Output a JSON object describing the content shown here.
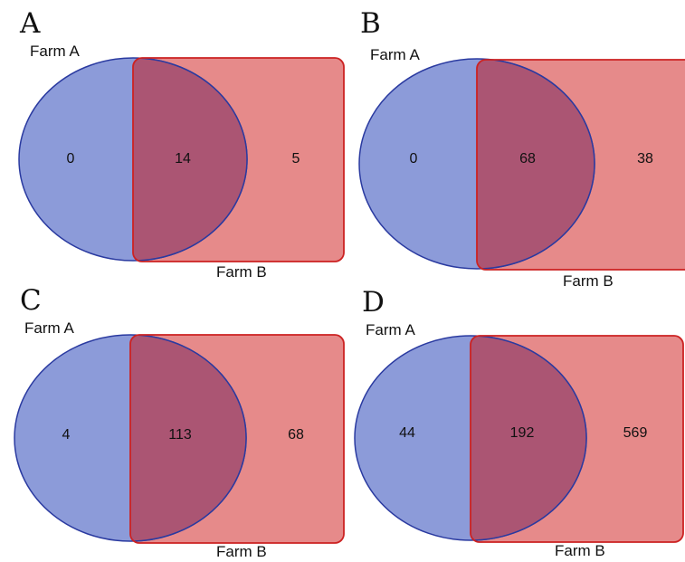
{
  "colors": {
    "circle_fill": "#8c9bd9",
    "circle_stroke": "#2a3aa0",
    "rect_fill": "#e68a8a",
    "rect_stroke": "#cc2222",
    "overlap_fill": "#ab5573"
  },
  "panels": [
    {
      "letter": "A",
      "set_a_label": "Farm A",
      "set_b_label": "Farm B",
      "only_a": "0",
      "both": "14",
      "only_b": "5"
    },
    {
      "letter": "B",
      "set_a_label": "Farm A",
      "set_b_label": "Farm B",
      "only_a": "0",
      "both": "68",
      "only_b": "38"
    },
    {
      "letter": "C",
      "set_a_label": "Farm A",
      "set_b_label": "Farm B",
      "only_a": "4",
      "both": "113",
      "only_b": "68"
    },
    {
      "letter": "D",
      "set_a_label": "Farm A",
      "set_b_label": "Farm B",
      "only_a": "44",
      "both": "192",
      "only_b": "569"
    }
  ]
}
